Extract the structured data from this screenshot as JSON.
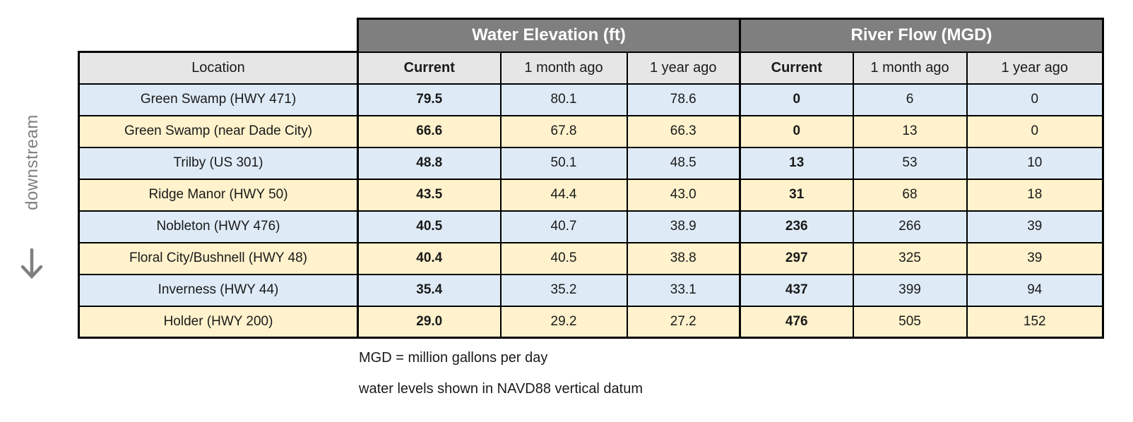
{
  "chart_data": {
    "type": "table",
    "title": "",
    "column_groups": [
      {
        "label": "Water Elevation (ft)",
        "span": 3
      },
      {
        "label": "River Flow (MGD)",
        "span": 3
      }
    ],
    "columns": [
      "Location",
      "Current",
      "1 month ago",
      "1 year ago",
      "Current",
      "1 month ago",
      "1 year ago"
    ],
    "rows": [
      [
        "Green Swamp (HWY 471)",
        "79.5",
        "80.1",
        "78.6",
        "0",
        "6",
        "0"
      ],
      [
        "Green Swamp (near Dade City)",
        "66.6",
        "67.8",
        "66.3",
        "0",
        "13",
        "0"
      ],
      [
        "Trilby (US 301)",
        "48.8",
        "50.1",
        "48.5",
        "13",
        "53",
        "10"
      ],
      [
        "Ridge Manor (HWY 50)",
        "43.5",
        "44.4",
        "43.0",
        "31",
        "68",
        "18"
      ],
      [
        "Nobleton (HWY 476)",
        "40.5",
        "40.7",
        "38.9",
        "236",
        "266",
        "39"
      ],
      [
        "Floral City/Bushnell (HWY 48)",
        "40.4",
        "40.5",
        "38.8",
        "297",
        "325",
        "39"
      ],
      [
        "Inverness (HWY 44)",
        "35.4",
        "35.2",
        "33.1",
        "437",
        "399",
        "94"
      ],
      [
        "Holder (HWY 200)",
        "29.0",
        "29.2",
        "27.2",
        "476",
        "505",
        "152"
      ]
    ],
    "orientation_label": "downstream",
    "notes": [
      "MGD = million gallons per day",
      "water levels shown in NAVD88 vertical datum"
    ],
    "layout": {
      "bold_columns": [
        1,
        4
      ],
      "row_stripe_order": [
        "blue",
        "cream"
      ],
      "legend_position": "none",
      "grid": "on"
    }
  },
  "icons": {
    "downstream_arrow": "down-arrow"
  },
  "colors": {
    "group_header_bg": "#7f7f7f",
    "group_header_text": "#ffffff",
    "subheader_bg": "#e7e6e6",
    "row_blue": "#deebf7",
    "row_cream": "#fff2cc",
    "border": "#000000",
    "text": "#1a1a1a",
    "muted_gray": "#7f7f7f",
    "page_bg": "#ffffff"
  }
}
